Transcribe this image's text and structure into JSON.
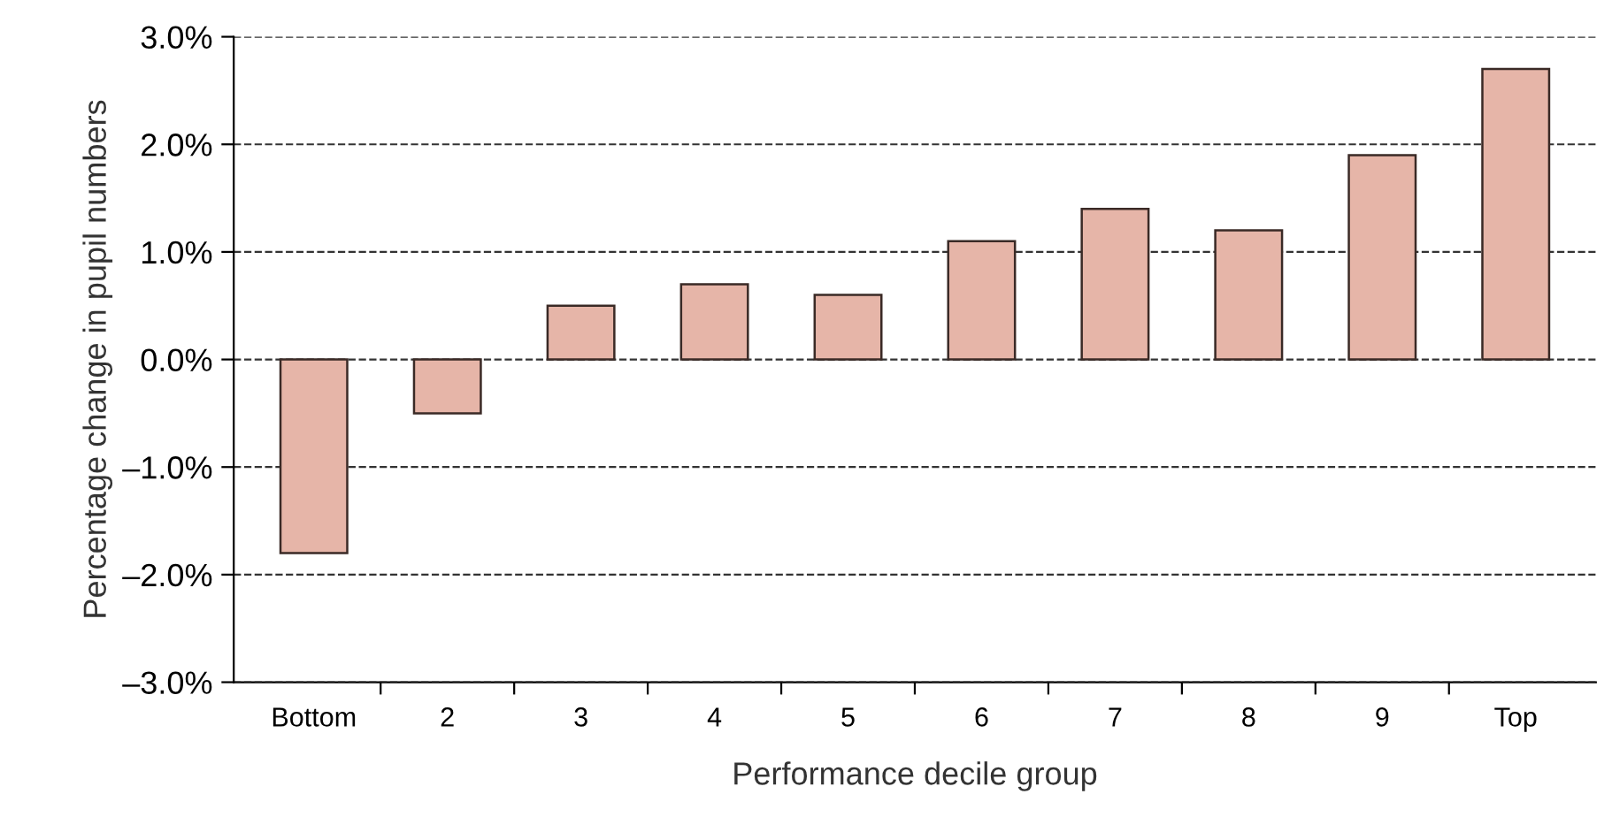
{
  "chart_data": {
    "type": "bar",
    "xlabel": "Performance decile group",
    "ylabel": "Percentage change in pupil numbers",
    "categories": [
      "Bottom",
      "2",
      "3",
      "4",
      "5",
      "6",
      "7",
      "8",
      "9",
      "Top"
    ],
    "values": [
      -1.8,
      -0.5,
      0.5,
      0.7,
      0.6,
      1.1,
      1.4,
      1.2,
      1.9,
      2.7
    ],
    "color": "#e6b5a8",
    "ylim": [
      -3,
      3
    ],
    "yticks": [
      {
        "value": -3,
        "label": "–3.0%"
      },
      {
        "value": -2,
        "label": "–2.0%"
      },
      {
        "value": -1,
        "label": "–1.0%"
      },
      {
        "value": 0,
        "label": "0.0%"
      },
      {
        "value": 1,
        "label": "1.0%"
      },
      {
        "value": 2,
        "label": "2.0%"
      },
      {
        "value": 3,
        "label": "3.0%"
      }
    ],
    "grid": "y",
    "line_style": "dashed"
  }
}
